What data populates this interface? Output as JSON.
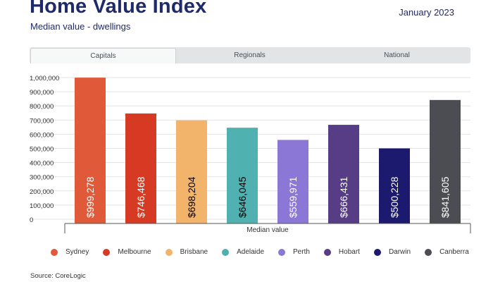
{
  "header": {
    "title": "Home Value Index",
    "subtitle": "Median value - dwellings",
    "date": "January 2023"
  },
  "tabs": [
    {
      "label": "Capitals",
      "active": true
    },
    {
      "label": "Regionals",
      "active": false
    },
    {
      "label": "National",
      "active": false
    }
  ],
  "source": "Source: CoreLogic",
  "chart_data": {
    "type": "bar",
    "categories": [
      "Sydney",
      "Melbourne",
      "Brisbane",
      "Adelaide",
      "Perth",
      "Hobart",
      "Darwin",
      "Canberra"
    ],
    "values": [
      999278,
      746468,
      698204,
      646045,
      559971,
      666431,
      500228,
      841605
    ],
    "data_labels": [
      "$999,278",
      "$746,468",
      "$698,204",
      "$646,045",
      "$559,971",
      "$666,431",
      "$500,228",
      "$841,605"
    ],
    "colors": [
      "#e05a3a",
      "#d63a22",
      "#f2b36b",
      "#4fb1b0",
      "#8b78d6",
      "#573d86",
      "#1c1a6e",
      "#4c4d52"
    ],
    "label_colors": [
      "#ffffff",
      "#ffffff",
      "#000000",
      "#000000",
      "#ffffff",
      "#ffffff",
      "#ffffff",
      "#ffffff"
    ],
    "yticks": [
      "0",
      "100,000",
      "200,000",
      "300,000",
      "400,000",
      "500,000",
      "600,000",
      "700,000",
      "800,000",
      "900,000",
      "1,000,000"
    ],
    "ylim": [
      0,
      1000000
    ],
    "xlabel": "Median value",
    "grid": true,
    "legend_position": "bottom"
  }
}
